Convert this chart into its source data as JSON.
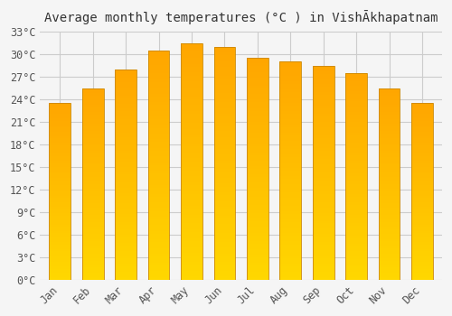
{
  "title": "Average monthly temperatures (°C ) in VishĀkhapatnam",
  "months": [
    "Jan",
    "Feb",
    "Mar",
    "Apr",
    "May",
    "Jun",
    "Jul",
    "Aug",
    "Sep",
    "Oct",
    "Nov",
    "Dec"
  ],
  "temperatures": [
    23.5,
    25.5,
    28.0,
    30.5,
    31.5,
    31.0,
    29.5,
    29.0,
    28.5,
    27.5,
    25.5,
    23.5
  ],
  "bar_color_top": "#FFA500",
  "bar_color_bottom": "#FFD700",
  "bar_edge_color": "#CC8800",
  "ylim": [
    0,
    33
  ],
  "yticks": [
    0,
    3,
    6,
    9,
    12,
    15,
    18,
    21,
    24,
    27,
    30,
    33
  ],
  "ytick_labels": [
    "0°C",
    "3°C",
    "6°C",
    "9°C",
    "12°C",
    "15°C",
    "18°C",
    "21°C",
    "24°C",
    "27°C",
    "30°C",
    "33°C"
  ],
  "bg_color": "#f5f5f5",
  "grid_color": "#cccccc",
  "title_fontsize": 10,
  "tick_fontsize": 8.5,
  "font_family": "monospace"
}
